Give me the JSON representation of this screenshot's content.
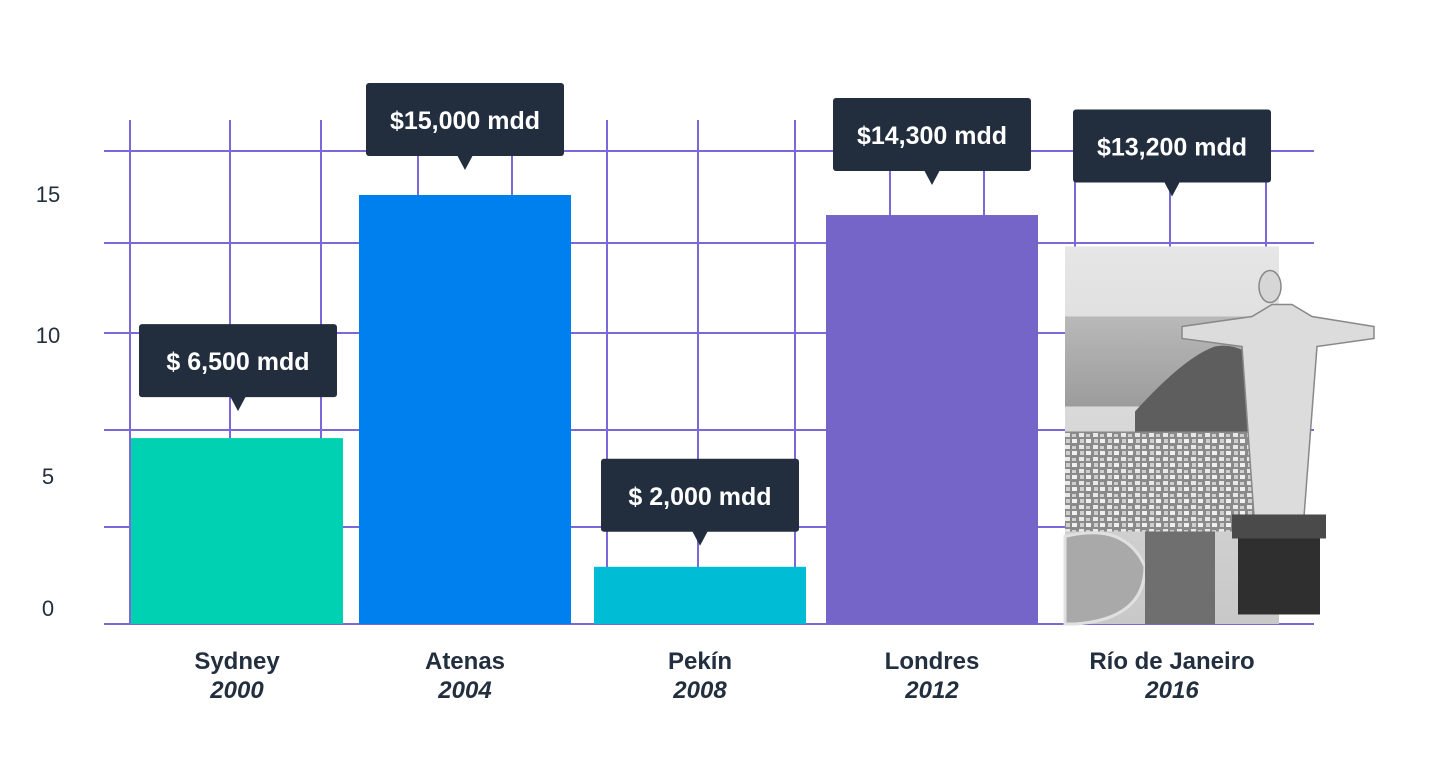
{
  "chart_data": {
    "type": "bar",
    "title": "",
    "xlabel": "",
    "ylabel": "",
    "ylim": [
      0,
      17.5
    ],
    "yticks": [
      0,
      5,
      10,
      15
    ],
    "grid": true,
    "categories": [
      "Sydney",
      "Atenas",
      "Pekín",
      "Londres",
      "Río de Janeiro"
    ],
    "years": [
      "2000",
      "2004",
      "2008",
      "2012",
      "2016"
    ],
    "values": [
      6.5,
      15.0,
      2.0,
      14.3,
      13.2
    ],
    "data_labels": [
      "$ 6,500 mdd",
      "$15,000 mdd",
      "$ 2,000 mdd",
      "$14,300 mdd",
      "$13,200 mdd"
    ],
    "colors": [
      "#00d1b2",
      "#0080ee",
      "#00bcd4",
      "#7565c8",
      "photo"
    ],
    "grid_color": "#7b68d9",
    "callout_color": "#222e3d",
    "text_color": "#232f3e",
    "last_bar_image": "christ-the-redeemer-photo"
  }
}
